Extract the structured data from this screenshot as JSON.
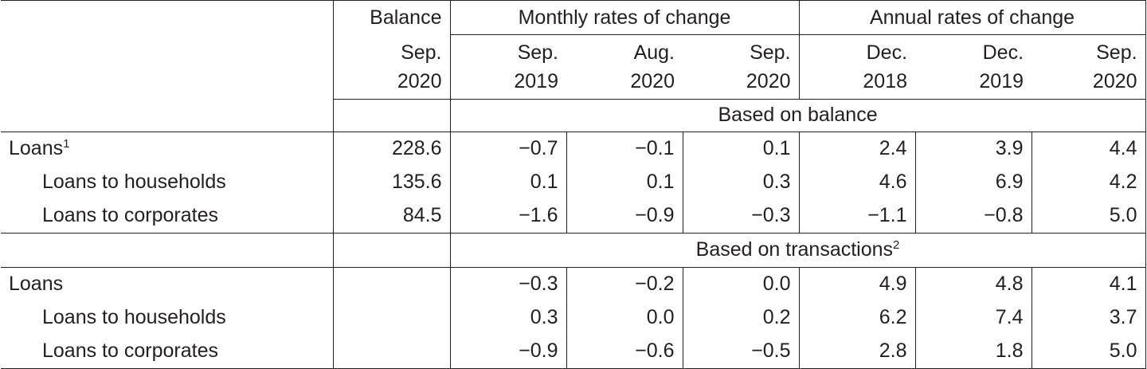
{
  "header": {
    "balance": "Balance",
    "monthly": "Monthly rates of change",
    "annual": "Annual rates of change",
    "cols": [
      {
        "line1": "Sep.",
        "line2": "2020"
      },
      {
        "line1": "Sep.",
        "line2": "2019"
      },
      {
        "line1": "Aug.",
        "line2": "2020"
      },
      {
        "line1": "Sep.",
        "line2": "2020"
      },
      {
        "line1": "Dec.",
        "line2": "2018"
      },
      {
        "line1": "Dec.",
        "line2": "2019"
      },
      {
        "line1": "Sep.",
        "line2": "2020"
      }
    ]
  },
  "section1": {
    "title": "Based on balance",
    "rows": [
      {
        "label": "Loans",
        "sup": "1",
        "values": [
          "228.6",
          "−0.7",
          "−0.1",
          "0.1",
          "2.4",
          "3.9",
          "4.4"
        ]
      },
      {
        "label": "Loans to households",
        "values": [
          "135.6",
          "0.1",
          "0.1",
          "0.3",
          "4.6",
          "6.9",
          "4.2"
        ]
      },
      {
        "label": "Loans to corporates",
        "values": [
          "84.5",
          "−1.6",
          "−0.9",
          "−0.3",
          "−1.1",
          "−0.8",
          "5.0"
        ]
      }
    ]
  },
  "section2": {
    "title": "Based on transactions",
    "sup": "2",
    "rows": [
      {
        "label": "Loans",
        "values": [
          "",
          "−0.3",
          "−0.2",
          "0.0",
          "4.9",
          "4.8",
          "4.1"
        ]
      },
      {
        "label": "Loans to households",
        "values": [
          "",
          "0.3",
          "0.0",
          "0.2",
          "6.2",
          "7.4",
          "3.7"
        ]
      },
      {
        "label": "Loans to corporates",
        "values": [
          "",
          "−0.9",
          "−0.6",
          "−0.5",
          "2.8",
          "1.8",
          "5.0"
        ]
      }
    ]
  }
}
